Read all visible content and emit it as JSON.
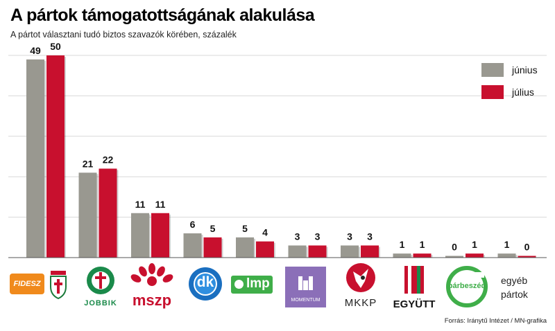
{
  "title": "A pártok támogatottságának alakulása",
  "subtitle": "A pártot választani tudó biztos szavazók körében, százalék",
  "source": "Forrás: Iránytű Intézet / MN-grafika",
  "logos": {
    "fidesz": "FIDESZ",
    "kdnp": "KDNP",
    "jobbik": "JOBBIK",
    "mszp": "mszp",
    "dk": "dk",
    "lmp": "lmp",
    "momentum": "MOMENTUM",
    "mkkp": "MKKP",
    "egyutt": "EGYÜTT",
    "parbeszed": "párbeszéd",
    "other_line1": "egyéb",
    "other_line2": "pártok"
  },
  "chart_data": {
    "type": "bar",
    "categories": [
      "Fidesz-KDNP",
      "Jobbik",
      "MSZP",
      "DK",
      "LMP",
      "Momentum",
      "MKKP",
      "Együtt",
      "Párbeszéd",
      "egyéb pártok"
    ],
    "series": [
      {
        "name": "június",
        "color": "#999890",
        "values": [
          49,
          21,
          11,
          6,
          5,
          3,
          3,
          1,
          0,
          1
        ]
      },
      {
        "name": "július",
        "color": "#c8102e",
        "values": [
          50,
          22,
          11,
          5,
          4,
          3,
          3,
          1,
          1,
          0
        ]
      }
    ],
    "ylim": [
      0,
      50
    ],
    "grid": true,
    "legend": "top-right"
  }
}
